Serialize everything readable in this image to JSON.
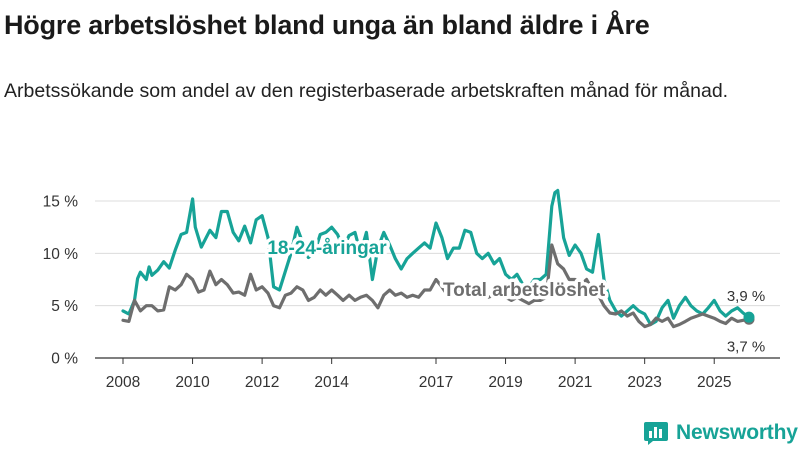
{
  "header": {
    "title": "Högre arbetslöshet bland unga än bland äldre i Åre",
    "subtitle": "Arbetssökande som andel av den registerbaserade arbetskraften månad för månad."
  },
  "brand": {
    "name": "Newsworthy",
    "color": "#17a397"
  },
  "chart_data": {
    "type": "line",
    "title": "Högre arbetslöshet bland unga än bland äldre i Åre",
    "subtitle": "Arbetssökande som andel av den registerbaserade arbetskraften månad för månad.",
    "xlabel": "",
    "ylabel": "",
    "xlim": [
      2008.0,
      2026.3
    ],
    "ylim": [
      0,
      16
    ],
    "grid": true,
    "x_ticks": [
      2008,
      2010,
      2012,
      2014,
      2017,
      2019,
      2021,
      2023,
      2025
    ],
    "x_tick_labels": [
      "2008",
      "2010",
      "2012",
      "2014",
      "2017",
      "2019",
      "2021",
      "2023",
      "2025"
    ],
    "y_ticks": [
      0,
      5,
      10,
      15
    ],
    "y_tick_labels": [
      "0 %",
      "5 %",
      "10 %",
      "15 %"
    ],
    "end_labels": {
      "youth": "3,9 %",
      "total": "3,7 %"
    },
    "series": [
      {
        "name": "18-24-åringar",
        "color": "#17a397",
        "x": [
          2008.0,
          2008.17,
          2008.33,
          2008.42,
          2008.5,
          2008.67,
          2008.75,
          2008.83,
          2009.0,
          2009.17,
          2009.33,
          2009.5,
          2009.67,
          2009.83,
          2010.0,
          2010.08,
          2010.25,
          2010.5,
          2010.67,
          2010.83,
          2011.0,
          2011.17,
          2011.33,
          2011.5,
          2011.67,
          2011.83,
          2012.0,
          2012.17,
          2012.33,
          2012.5,
          2012.67,
          2012.83,
          2013.0,
          2013.17,
          2013.33,
          2013.5,
          2013.67,
          2013.83,
          2014.0,
          2014.17,
          2014.33,
          2014.5,
          2014.67,
          2014.83,
          2015.0,
          2015.17,
          2015.33,
          2015.5,
          2015.67,
          2015.83,
          2016.0,
          2016.17,
          2016.33,
          2016.5,
          2016.67,
          2016.83,
          2017.0,
          2017.17,
          2017.33,
          2017.5,
          2017.67,
          2017.83,
          2018.0,
          2018.17,
          2018.33,
          2018.5,
          2018.67,
          2018.83,
          2019.0,
          2019.17,
          2019.33,
          2019.5,
          2019.67,
          2019.83,
          2020.0,
          2020.17,
          2020.33,
          2020.42,
          2020.5,
          2020.67,
          2020.83,
          2021.0,
          2021.17,
          2021.33,
          2021.5,
          2021.67,
          2021.83,
          2022.0,
          2022.17,
          2022.33,
          2022.5,
          2022.67,
          2022.83,
          2023.0,
          2023.17,
          2023.33,
          2023.5,
          2023.67,
          2023.83,
          2024.0,
          2024.17,
          2024.33,
          2024.5,
          2024.67,
          2024.83,
          2025.0,
          2025.17,
          2025.33,
          2025.5,
          2025.67,
          2025.83,
          2026.0
        ],
        "values": [
          4.5,
          4.2,
          5.5,
          7.6,
          8.2,
          7.5,
          8.7,
          7.9,
          8.4,
          9.2,
          8.6,
          10.3,
          11.8,
          12.0,
          15.2,
          12.5,
          10.6,
          12.2,
          11.5,
          14.0,
          14.0,
          12.0,
          11.2,
          12.6,
          11.0,
          13.2,
          13.6,
          11.5,
          6.8,
          6.5,
          8.3,
          10.0,
          12.5,
          11.0,
          9.6,
          10.0,
          11.8,
          12.0,
          12.5,
          11.8,
          10.5,
          11.7,
          12.0,
          10.0,
          12.0,
          7.5,
          10.5,
          12.0,
          10.8,
          9.5,
          8.5,
          9.5,
          10.0,
          10.5,
          11.0,
          10.5,
          12.9,
          11.5,
          9.5,
          10.5,
          10.5,
          12.2,
          12.0,
          10.0,
          9.5,
          10.0,
          9.0,
          9.5,
          8.0,
          7.5,
          8.0,
          7.0,
          6.8,
          7.5,
          7.5,
          8.0,
          14.5,
          15.8,
          16.0,
          11.5,
          9.8,
          10.8,
          10.0,
          8.5,
          8.2,
          11.8,
          7.5,
          5.5,
          4.5,
          4.0,
          4.5,
          5.0,
          4.5,
          4.2,
          3.2,
          3.5,
          4.8,
          5.5,
          3.8,
          5.0,
          5.8,
          5.0,
          4.5,
          4.2,
          4.8,
          5.5,
          4.5,
          4.0,
          4.5,
          4.8,
          4.3,
          3.9
        ]
      },
      {
        "name": "Total arbetslöshet",
        "color": "#6e6e6e",
        "x": [
          2008.0,
          2008.17,
          2008.33,
          2008.5,
          2008.67,
          2008.83,
          2009.0,
          2009.17,
          2009.33,
          2009.5,
          2009.67,
          2009.83,
          2010.0,
          2010.17,
          2010.33,
          2010.5,
          2010.67,
          2010.83,
          2011.0,
          2011.17,
          2011.33,
          2011.5,
          2011.67,
          2011.83,
          2012.0,
          2012.17,
          2012.33,
          2012.5,
          2012.67,
          2012.83,
          2013.0,
          2013.17,
          2013.33,
          2013.5,
          2013.67,
          2013.83,
          2014.0,
          2014.17,
          2014.33,
          2014.5,
          2014.67,
          2014.83,
          2015.0,
          2015.17,
          2015.33,
          2015.5,
          2015.67,
          2015.83,
          2016.0,
          2016.17,
          2016.33,
          2016.5,
          2016.67,
          2016.83,
          2017.0,
          2017.17,
          2017.33,
          2017.5,
          2017.67,
          2017.83,
          2018.0,
          2018.17,
          2018.33,
          2018.5,
          2018.67,
          2018.83,
          2019.0,
          2019.17,
          2019.33,
          2019.5,
          2019.67,
          2019.83,
          2020.0,
          2020.17,
          2020.33,
          2020.5,
          2020.67,
          2020.83,
          2021.0,
          2021.17,
          2021.33,
          2021.5,
          2021.67,
          2021.83,
          2022.0,
          2022.17,
          2022.33,
          2022.5,
          2022.67,
          2022.83,
          2023.0,
          2023.17,
          2023.33,
          2023.5,
          2023.67,
          2023.83,
          2024.0,
          2024.17,
          2024.33,
          2024.5,
          2024.67,
          2024.83,
          2025.0,
          2025.17,
          2025.33,
          2025.5,
          2025.67,
          2025.83,
          2026.0
        ],
        "values": [
          3.6,
          3.5,
          5.5,
          4.5,
          5.0,
          5.0,
          4.5,
          4.6,
          6.8,
          6.5,
          7.0,
          8.0,
          7.5,
          6.3,
          6.5,
          8.3,
          7.0,
          7.5,
          7.0,
          6.2,
          6.3,
          6.0,
          8.0,
          6.5,
          6.8,
          6.2,
          5.0,
          4.8,
          6.0,
          6.2,
          6.8,
          6.5,
          5.5,
          5.8,
          6.5,
          6.0,
          6.5,
          6.0,
          5.5,
          6.0,
          5.5,
          5.8,
          6.0,
          5.5,
          4.8,
          6.0,
          6.5,
          6.0,
          6.2,
          5.8,
          6.0,
          5.8,
          6.5,
          6.5,
          7.5,
          6.8,
          6.0,
          6.5,
          6.5,
          6.8,
          6.5,
          6.2,
          6.0,
          5.8,
          6.0,
          5.8,
          5.8,
          5.5,
          5.8,
          5.5,
          5.2,
          5.5,
          5.5,
          5.8,
          10.8,
          9.0,
          8.5,
          7.5,
          7.5,
          7.0,
          7.5,
          6.5,
          6.0,
          5.0,
          4.3,
          4.2,
          4.5,
          4.0,
          4.3,
          3.5,
          3.0,
          3.2,
          3.8,
          3.5,
          3.8,
          3.0,
          3.2,
          3.5,
          3.8,
          4.0,
          4.2,
          4.0,
          3.8,
          3.5,
          3.3,
          3.8,
          3.5,
          3.6,
          3.7
        ]
      }
    ]
  }
}
